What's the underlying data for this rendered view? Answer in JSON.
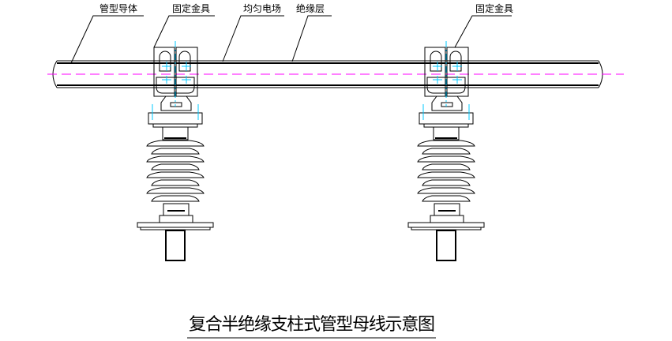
{
  "labels": {
    "conductor": "管型导体",
    "fitting_left": "固定金具",
    "uniform_field": "均匀电场",
    "insulation_layer": "绝缘层",
    "fitting_right": "固定金具"
  },
  "title": "复合半绝缘支柱式管型母线示意图",
  "colors": {
    "line": "#000000",
    "centerline": "#ff00ff",
    "axis": "#00c8ff"
  }
}
